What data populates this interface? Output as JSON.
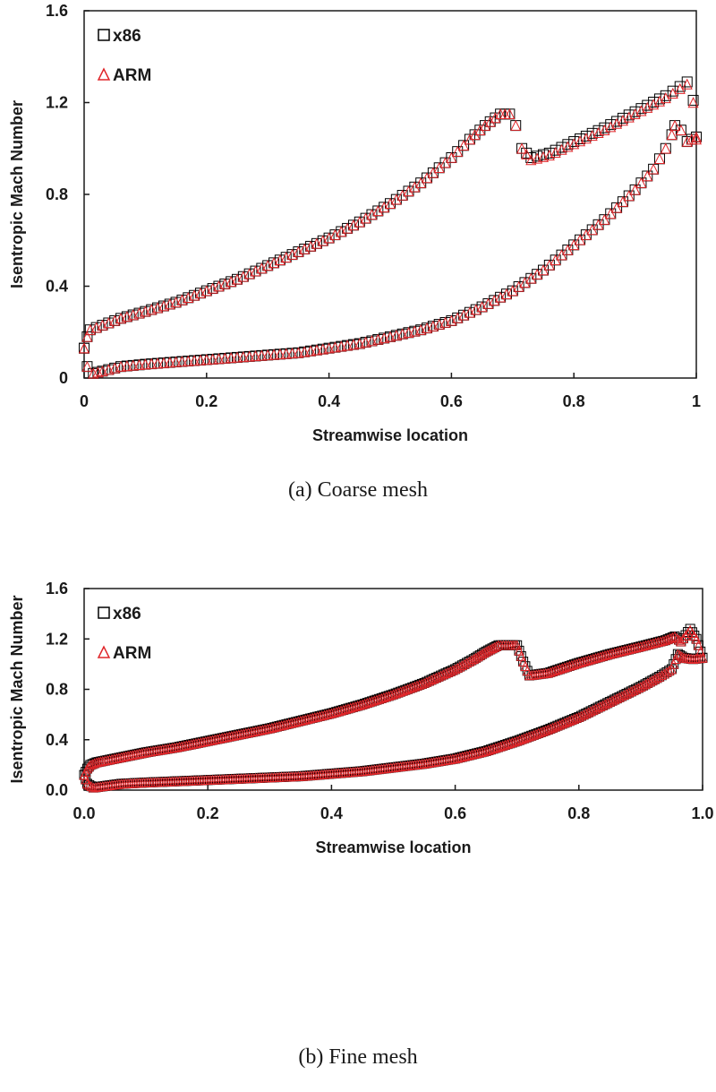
{
  "chart_data": [
    {
      "type": "scatter",
      "caption": "(a)  Coarse mesh",
      "xlabel": "Streamwise location",
      "ylabel": "Isentropic Mach Number",
      "xlim": [
        0,
        1
      ],
      "ylim": [
        0,
        1.6
      ],
      "xticks": [
        "0",
        "0.2",
        "0.4",
        "0.6",
        "0.8",
        "1"
      ],
      "yticks": [
        "0",
        "0.4",
        "0.8",
        "1.2",
        "1.6"
      ],
      "legend_position": "top-left",
      "grid": false,
      "series": [
        {
          "name": "x86",
          "marker": "square",
          "color": "#000000",
          "suction_side": {
            "x": [
              0.0,
              0.005,
              0.01,
              0.03,
              0.06,
              0.1,
              0.15,
              0.2,
              0.25,
              0.3,
              0.35,
              0.4,
              0.45,
              0.5,
              0.55,
              0.6,
              0.63,
              0.655,
              0.68,
              0.695,
              0.705,
              0.715,
              0.73,
              0.76,
              0.8,
              0.85,
              0.9,
              0.95,
              0.985,
              0.995,
              1.0
            ],
            "y": [
              0.13,
              0.18,
              0.21,
              0.23,
              0.26,
              0.29,
              0.33,
              0.38,
              0.43,
              0.49,
              0.55,
              0.61,
              0.68,
              0.76,
              0.85,
              0.96,
              1.04,
              1.1,
              1.15,
              1.15,
              1.1,
              1.0,
              0.96,
              0.98,
              1.03,
              1.09,
              1.16,
              1.23,
              1.29,
              1.21,
              1.05
            ]
          },
          "pressure_side": {
            "x": [
              0.0,
              0.005,
              0.015,
              0.03,
              0.06,
              0.1,
              0.15,
              0.2,
              0.25,
              0.3,
              0.35,
              0.4,
              0.45,
              0.5,
              0.55,
              0.6,
              0.65,
              0.7,
              0.75,
              0.8,
              0.85,
              0.9,
              0.93,
              0.95,
              0.96,
              0.965,
              0.975,
              0.985,
              1.0
            ],
            "y": [
              0.13,
              0.05,
              0.02,
              0.03,
              0.05,
              0.06,
              0.07,
              0.08,
              0.09,
              0.1,
              0.11,
              0.13,
              0.15,
              0.18,
              0.21,
              0.25,
              0.31,
              0.38,
              0.47,
              0.58,
              0.69,
              0.82,
              0.91,
              1.0,
              1.06,
              1.1,
              1.08,
              1.03,
              1.05
            ]
          }
        },
        {
          "name": "ARM",
          "marker": "triangle",
          "color": "#e0262a",
          "suction_side": {
            "x": [
              0.0,
              0.005,
              0.01,
              0.03,
              0.06,
              0.1,
              0.15,
              0.2,
              0.25,
              0.3,
              0.35,
              0.4,
              0.45,
              0.5,
              0.55,
              0.6,
              0.63,
              0.655,
              0.68,
              0.695,
              0.705,
              0.715,
              0.73,
              0.76,
              0.8,
              0.85,
              0.9,
              0.95,
              0.985,
              0.995,
              1.0
            ],
            "y": [
              0.13,
              0.18,
              0.21,
              0.23,
              0.26,
              0.29,
              0.33,
              0.38,
              0.43,
              0.49,
              0.55,
              0.61,
              0.68,
              0.76,
              0.85,
              0.96,
              1.04,
              1.1,
              1.15,
              1.15,
              1.1,
              1.0,
              0.95,
              0.97,
              1.02,
              1.08,
              1.15,
              1.22,
              1.28,
              1.2,
              1.04
            ]
          },
          "pressure_side": {
            "x": [
              0.0,
              0.005,
              0.015,
              0.03,
              0.06,
              0.1,
              0.15,
              0.2,
              0.25,
              0.3,
              0.35,
              0.4,
              0.45,
              0.5,
              0.55,
              0.6,
              0.65,
              0.7,
              0.75,
              0.8,
              0.85,
              0.9,
              0.93,
              0.95,
              0.96,
              0.965,
              0.975,
              0.985,
              1.0
            ],
            "y": [
              0.13,
              0.05,
              0.02,
              0.03,
              0.05,
              0.06,
              0.07,
              0.08,
              0.09,
              0.1,
              0.11,
              0.13,
              0.15,
              0.18,
              0.21,
              0.25,
              0.31,
              0.38,
              0.47,
              0.58,
              0.69,
              0.82,
              0.91,
              1.0,
              1.06,
              1.1,
              1.08,
              1.03,
              1.05
            ]
          }
        }
      ]
    },
    {
      "type": "scatter",
      "caption": "(b)  Fine  mesh",
      "xlabel": "Streamwise location",
      "ylabel": "Isentropic Mach Number",
      "xlim": [
        0,
        1
      ],
      "ylim": [
        0,
        1.6
      ],
      "xticks": [
        "0.0",
        "0.2",
        "0.4",
        "0.6",
        "0.8",
        "1.0"
      ],
      "yticks": [
        "0.0",
        "0.4",
        "0.8",
        "1.2",
        "1.6"
      ],
      "legend_position": "top-left",
      "grid": false,
      "series": [
        {
          "name": "x86",
          "marker": "square",
          "color": "#000000",
          "suction_side": {
            "x": [
              0.0,
              0.005,
              0.01,
              0.02,
              0.03,
              0.06,
              0.1,
              0.15,
              0.2,
              0.25,
              0.3,
              0.35,
              0.4,
              0.45,
              0.5,
              0.55,
              0.6,
              0.63,
              0.65,
              0.67,
              0.69,
              0.7,
              0.71,
              0.72,
              0.75,
              0.8,
              0.85,
              0.9,
              0.94,
              0.955,
              0.965,
              0.98,
              0.99,
              1.0
            ],
            "y": [
              0.12,
              0.17,
              0.2,
              0.22,
              0.23,
              0.26,
              0.3,
              0.34,
              0.39,
              0.44,
              0.49,
              0.55,
              0.61,
              0.68,
              0.76,
              0.85,
              0.96,
              1.04,
              1.1,
              1.15,
              1.15,
              1.15,
              1.02,
              0.91,
              0.93,
              1.01,
              1.08,
              1.14,
              1.19,
              1.22,
              1.18,
              1.28,
              1.2,
              1.05
            ]
          },
          "pressure_side": {
            "x": [
              0.0,
              0.005,
              0.015,
              0.03,
              0.06,
              0.1,
              0.15,
              0.2,
              0.25,
              0.3,
              0.35,
              0.4,
              0.45,
              0.5,
              0.55,
              0.6,
              0.65,
              0.7,
              0.75,
              0.8,
              0.85,
              0.9,
              0.93,
              0.95,
              0.96,
              0.97,
              0.985,
              1.0
            ],
            "y": [
              0.12,
              0.05,
              0.02,
              0.03,
              0.05,
              0.06,
              0.07,
              0.08,
              0.09,
              0.1,
              0.11,
              0.13,
              0.15,
              0.18,
              0.21,
              0.25,
              0.31,
              0.39,
              0.48,
              0.58,
              0.7,
              0.82,
              0.9,
              0.96,
              1.08,
              1.05,
              1.04,
              1.05
            ]
          }
        },
        {
          "name": "ARM",
          "marker": "triangle",
          "color": "#e0262a",
          "suction_side": {
            "x": [
              0.0,
              0.005,
              0.01,
              0.02,
              0.03,
              0.06,
              0.1,
              0.15,
              0.2,
              0.25,
              0.3,
              0.35,
              0.4,
              0.45,
              0.5,
              0.55,
              0.6,
              0.63,
              0.65,
              0.67,
              0.69,
              0.7,
              0.71,
              0.72,
              0.75,
              0.8,
              0.85,
              0.9,
              0.94,
              0.955,
              0.965,
              0.98,
              0.99,
              1.0
            ],
            "y": [
              0.12,
              0.17,
              0.2,
              0.22,
              0.23,
              0.26,
              0.3,
              0.34,
              0.39,
              0.44,
              0.49,
              0.55,
              0.61,
              0.68,
              0.76,
              0.85,
              0.96,
              1.04,
              1.1,
              1.15,
              1.15,
              1.15,
              1.02,
              0.91,
              0.93,
              1.01,
              1.08,
              1.14,
              1.19,
              1.22,
              1.18,
              1.27,
              1.2,
              1.05
            ]
          },
          "pressure_side": {
            "x": [
              0.0,
              0.005,
              0.015,
              0.03,
              0.06,
              0.1,
              0.15,
              0.2,
              0.25,
              0.3,
              0.35,
              0.4,
              0.45,
              0.5,
              0.55,
              0.6,
              0.65,
              0.7,
              0.75,
              0.8,
              0.85,
              0.9,
              0.93,
              0.95,
              0.96,
              0.97,
              0.985,
              1.0
            ],
            "y": [
              0.12,
              0.05,
              0.02,
              0.03,
              0.05,
              0.06,
              0.07,
              0.08,
              0.09,
              0.1,
              0.11,
              0.13,
              0.15,
              0.18,
              0.21,
              0.25,
              0.31,
              0.39,
              0.48,
              0.58,
              0.7,
              0.82,
              0.9,
              0.96,
              1.08,
              1.05,
              1.04,
              1.05
            ]
          }
        }
      ]
    }
  ]
}
